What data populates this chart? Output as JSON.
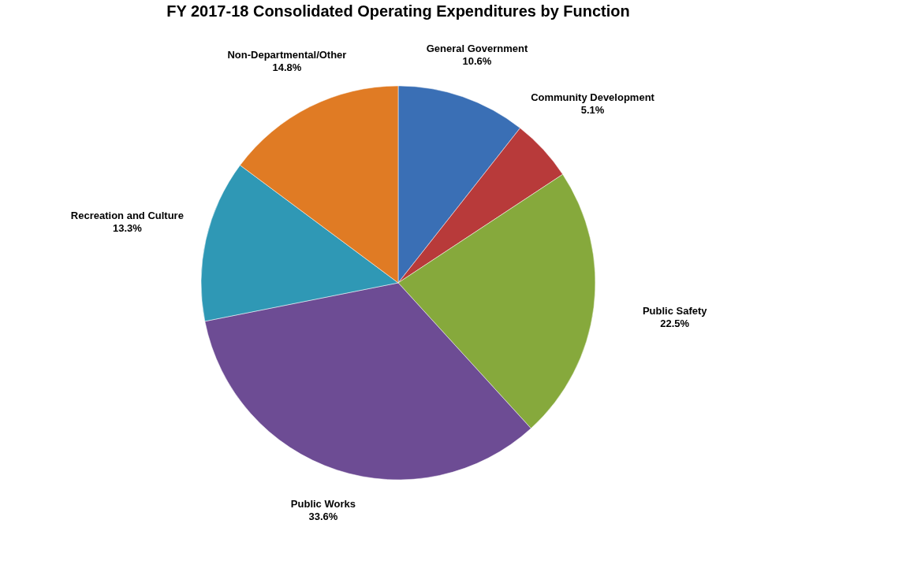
{
  "chart_data": {
    "type": "pie",
    "title": "FY 2017-18 Consolidated Operating Expenditures by Function",
    "categories": [
      "General Government",
      "Community Development",
      "Public Safety",
      "Public Works",
      "Recreation and Culture",
      "Non-Departmental/Other"
    ],
    "values": [
      10.6,
      5.1,
      22.5,
      33.6,
      13.3,
      14.8
    ],
    "value_labels": [
      "10.6%",
      "5.1%",
      "22.5%",
      "33.6%",
      "13.3%",
      "14.8%"
    ],
    "colors": [
      "#3a6fb5",
      "#b83a3a",
      "#86a93c",
      "#6d4c94",
      "#2f98b5",
      "#e07b24"
    ],
    "legend": false
  }
}
